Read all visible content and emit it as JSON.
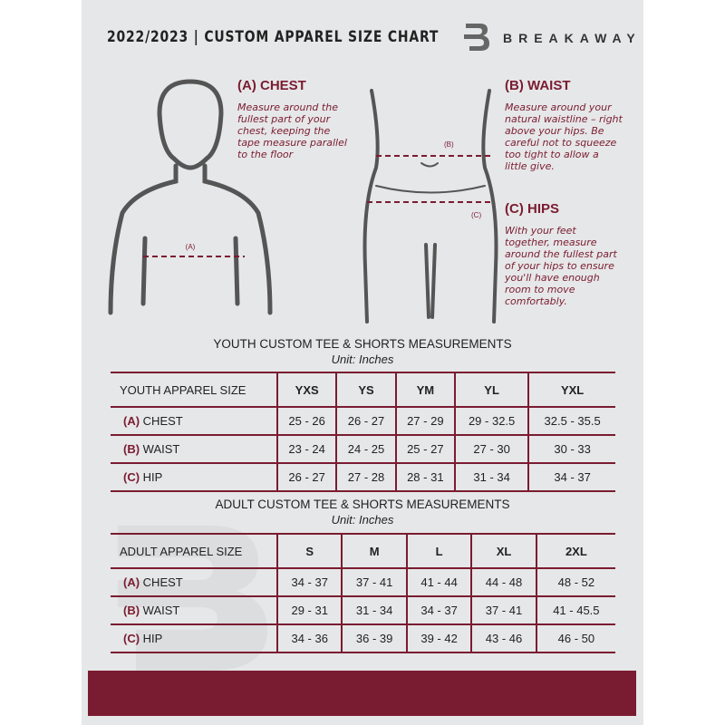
{
  "header": {
    "title": "2022/2023  |  CUSTOM APPAREL SIZE CHART",
    "brand": "BREAKAWAY"
  },
  "measures": {
    "chest": {
      "title": "(A) CHEST",
      "desc": "Measure around the fullest part of your chest, keeping the tape measure parallel to the floor",
      "marker": "(A)"
    },
    "waist": {
      "title": "(B) WAIST",
      "desc": "Measure around your natural waistline – right above your hips. Be careful not to squeeze too tight to allow a little give.",
      "marker": "(B)"
    },
    "hips": {
      "title": "(C) HIPS",
      "desc": "With your feet together, measure around the fullest part of your hips to ensure you'll have enough room to move comfortably.",
      "marker": "(C)"
    }
  },
  "youth": {
    "title": "YOUTH CUSTOM TEE & SHORTS MEASUREMENTS",
    "unit": "Unit: Inches",
    "header": [
      "YOUTH APPAREL SIZE",
      "YXS",
      "YS",
      "YM",
      "YL",
      "YXL"
    ],
    "rows": [
      {
        "code": "(A)",
        "name": "CHEST",
        "values": [
          "25 - 26",
          "26 - 27",
          "27 - 29",
          "29 - 32.5",
          "32.5 - 35.5"
        ]
      },
      {
        "code": "(B)",
        "name": "WAIST",
        "values": [
          "23 - 24",
          "24 - 25",
          "25 - 27",
          "27 - 30",
          "30 - 33"
        ]
      },
      {
        "code": "(C)",
        "name": "HIP",
        "values": [
          "26 - 27",
          "27 - 28",
          "28 - 31",
          "31 - 34",
          "34 - 37"
        ]
      }
    ]
  },
  "adult": {
    "title": "ADULT CUSTOM TEE & SHORTS MEASUREMENTS",
    "unit": "Unit: Inches",
    "header": [
      "ADULT APPAREL SIZE",
      "S",
      "M",
      "L",
      "XL",
      "2XL"
    ],
    "rows": [
      {
        "code": "(A)",
        "name": "CHEST",
        "values": [
          "34 - 37",
          "37 - 41",
          "41 - 44",
          "44 - 48",
          "48 - 52"
        ]
      },
      {
        "code": "(B)",
        "name": "WAIST",
        "values": [
          "29 - 31",
          "31 - 34",
          "34 - 37",
          "37 - 41",
          "41 - 45.5"
        ]
      },
      {
        "code": "(C)",
        "name": "HIP",
        "values": [
          "34 - 36",
          "36 - 39",
          "39 - 42",
          "43 - 46",
          "46 - 50"
        ]
      }
    ]
  },
  "colors": {
    "accent": "#7a1c31",
    "panel": "#e6e7e8"
  }
}
